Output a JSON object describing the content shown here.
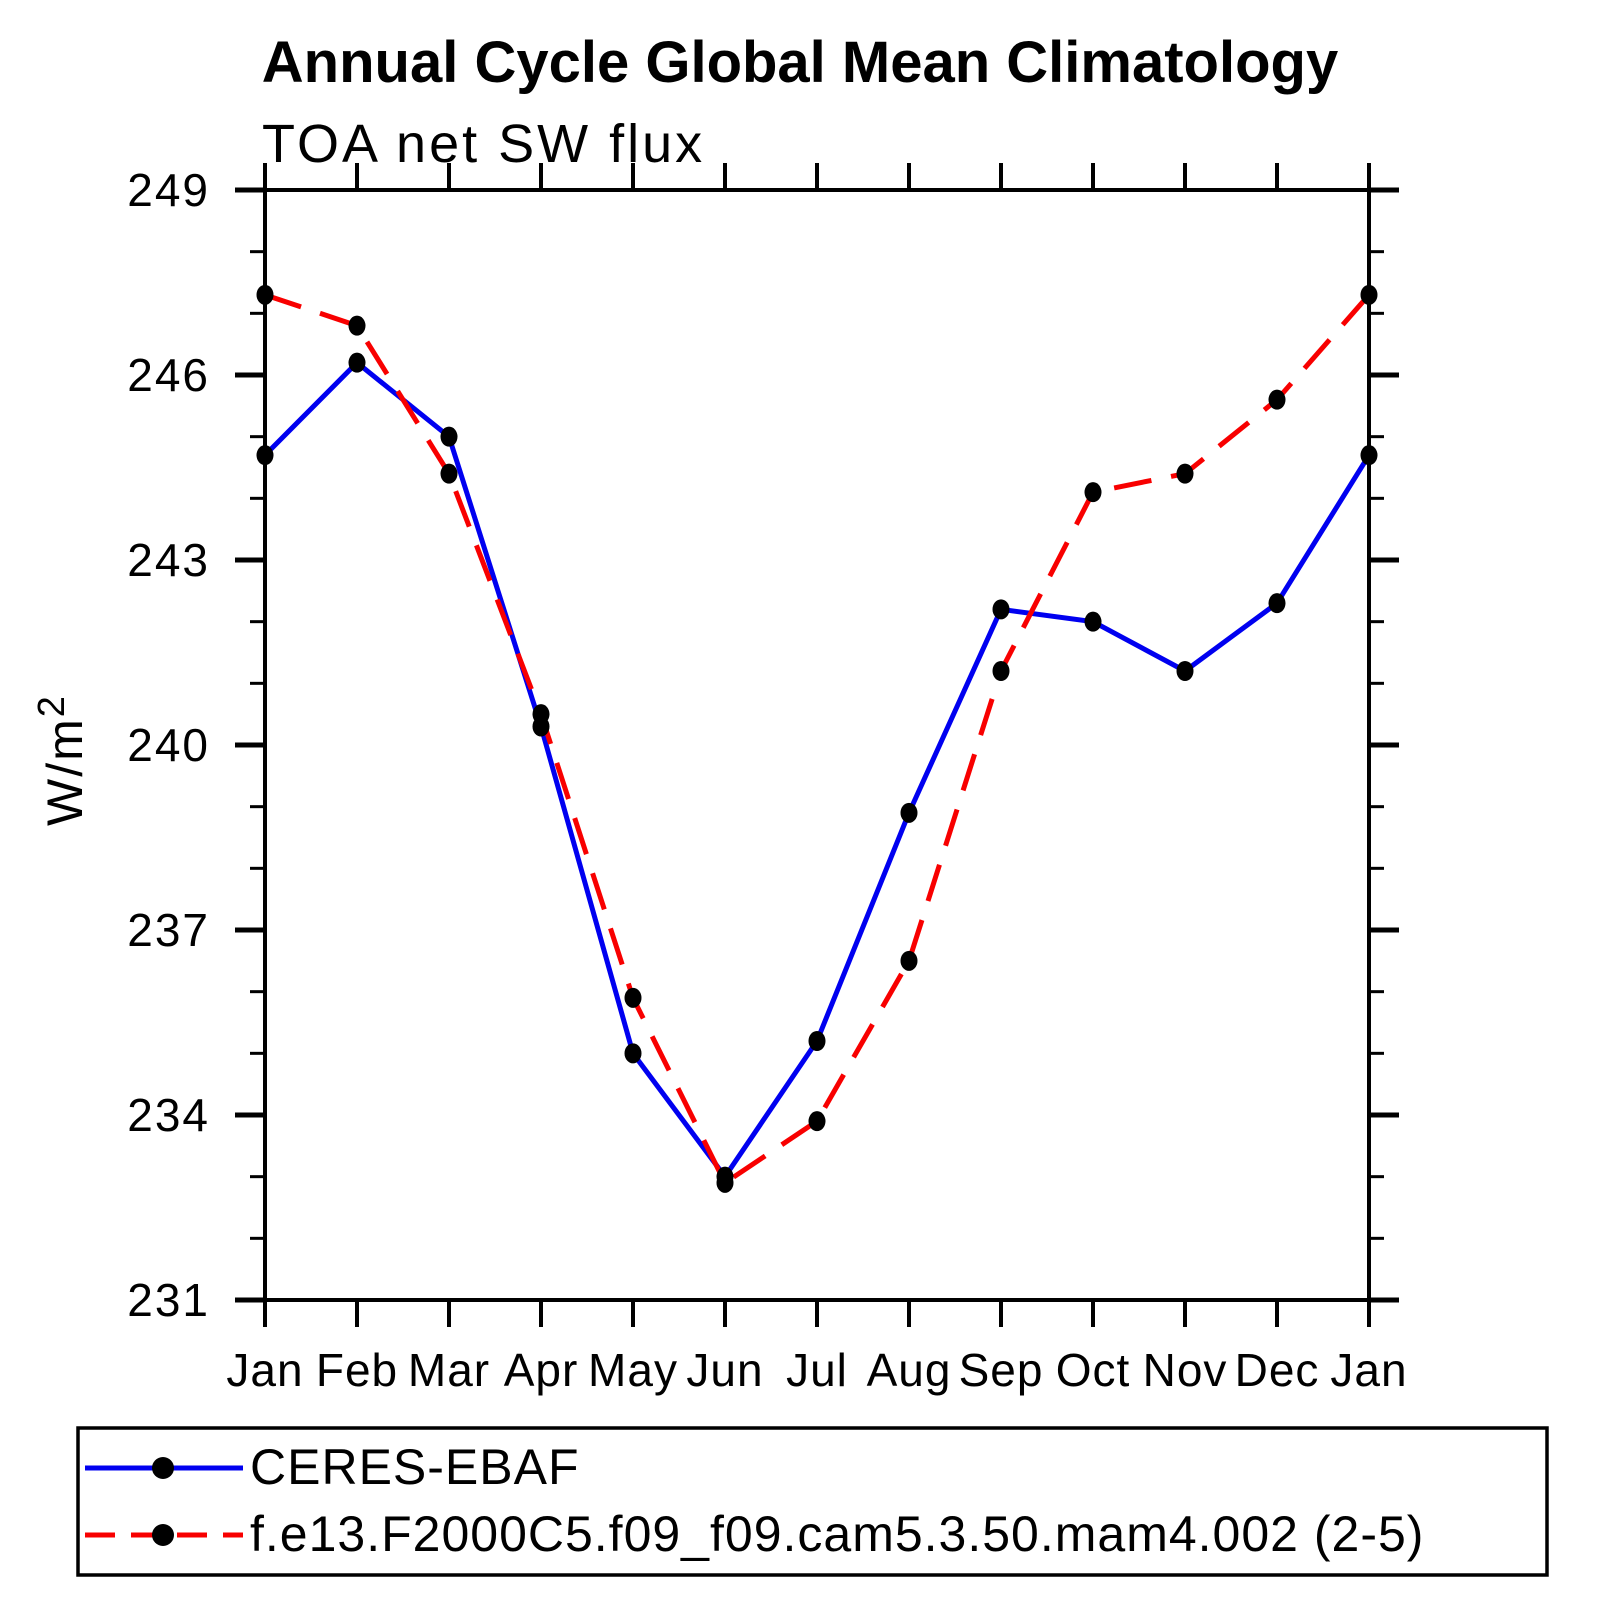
{
  "page": {
    "background": "#ffffff"
  },
  "title": "Annual Cycle Global Mean Climatology",
  "subtitle": "TOA net SW flux",
  "ylabel": {
    "base": "W/m",
    "sup": "2"
  },
  "colors": {
    "axis": "#000000",
    "marker": "#000000",
    "obs_line": "#0000f0",
    "model_line": "#f80000"
  },
  "chart_data": {
    "type": "line",
    "title": "Annual Cycle Global Mean Climatology",
    "subtitle": "TOA net SW flux",
    "ylabel": "W/m^2",
    "xlabel": "",
    "categories": [
      "Jan",
      "Feb",
      "Mar",
      "Apr",
      "May",
      "Jun",
      "Jul",
      "Aug",
      "Sep",
      "Oct",
      "Nov",
      "Dec",
      "Jan"
    ],
    "series": [
      {
        "name": "CERES-EBAF",
        "color": "#0000f0",
        "line_style": "solid",
        "marker": "filled-circle",
        "marker_color": "#000000",
        "values": [
          244.7,
          246.2,
          245.0,
          240.3,
          235.0,
          233.0,
          235.2,
          238.9,
          242.2,
          242.0,
          241.2,
          242.3,
          244.7
        ]
      },
      {
        "name": "f.e13.F2000C5.f09_f09.cam5.3.50.mam4.002 (2-5)",
        "color": "#f80000",
        "line_style": "dashed",
        "marker": "filled-circle",
        "marker_color": "#000000",
        "values": [
          247.3,
          246.8,
          244.4,
          240.5,
          235.9,
          232.9,
          233.9,
          236.5,
          241.2,
          244.1,
          244.4,
          245.6,
          247.3
        ]
      }
    ],
    "ylim": [
      231,
      249
    ],
    "yticks_major": [
      231,
      234,
      237,
      240,
      243,
      246,
      249
    ],
    "ytick_minor_step": 1,
    "grid": false,
    "legend_position": "bottom-left-box"
  }
}
